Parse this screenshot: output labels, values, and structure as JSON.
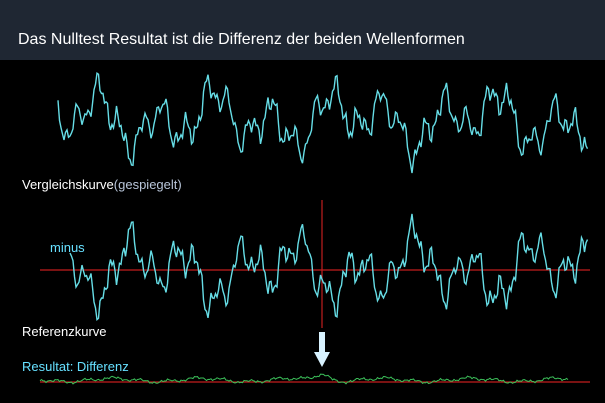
{
  "header": {
    "title": "Das Nulltest Resultat ist die Differenz der beiden Wellenformen"
  },
  "labels": {
    "vergleich_main": "Vergleichskurve",
    "vergleich_sub": "(gespiegelt)",
    "minus": "minus",
    "referenz": "Referenzkurve",
    "resultat": "Resultat: Differenz"
  },
  "colors": {
    "header_bg": "#1f2733",
    "wave": "#66dde6",
    "axis": "#c21e1e",
    "result_wave": "#3cc15a",
    "arrow": "#d8f2ff"
  },
  "icons": {
    "arrow": "down-arrow-icon"
  }
}
